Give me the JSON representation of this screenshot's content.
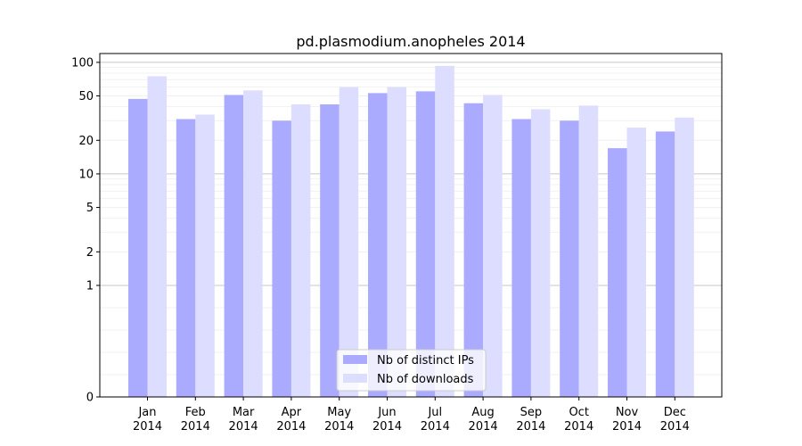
{
  "chart_data": {
    "type": "bar",
    "title": "pd.plasmodium.anopheles 2014",
    "xlabel": "",
    "ylabel": "",
    "yscale": "symlog",
    "ylim": [
      0,
      120
    ],
    "yticks": [
      0,
      1,
      2,
      5,
      10,
      20,
      50,
      100
    ],
    "categories": [
      [
        "Jan",
        "2014"
      ],
      [
        "Feb",
        "2014"
      ],
      [
        "Mar",
        "2014"
      ],
      [
        "Apr",
        "2014"
      ],
      [
        "May",
        "2014"
      ],
      [
        "Jun",
        "2014"
      ],
      [
        "Jul",
        "2014"
      ],
      [
        "Aug",
        "2014"
      ],
      [
        "Sep",
        "2014"
      ],
      [
        "Oct",
        "2014"
      ],
      [
        "Nov",
        "2014"
      ],
      [
        "Dec",
        "2014"
      ]
    ],
    "series": [
      {
        "name": "Nb of distinct IPs",
        "color": "#aaaaff",
        "values": [
          47,
          31,
          51,
          30,
          42,
          53,
          55,
          43,
          31,
          30,
          17,
          24
        ]
      },
      {
        "name": "Nb of downloads",
        "color": "#ddddff",
        "values": [
          75,
          34,
          56,
          42,
          60,
          60,
          93,
          51,
          38,
          41,
          26,
          32
        ]
      }
    ],
    "grid": true,
    "legend": "bottom-center"
  }
}
